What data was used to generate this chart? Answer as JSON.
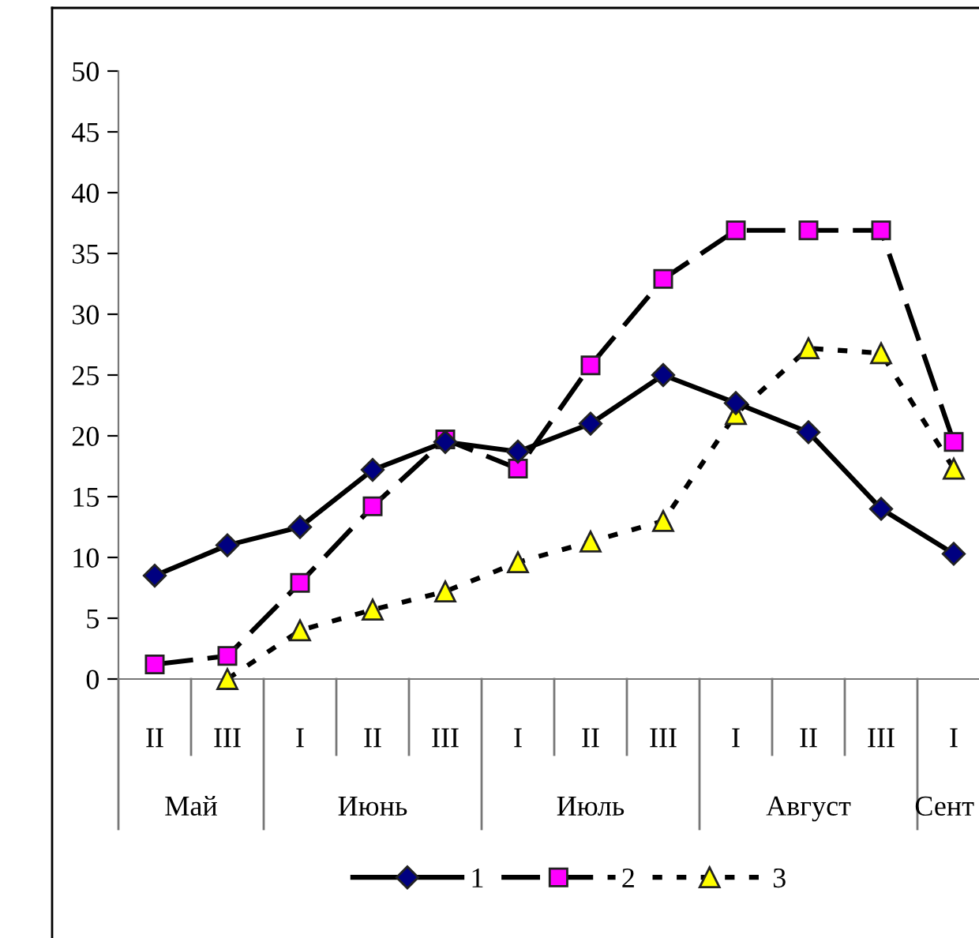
{
  "chart_data": {
    "type": "line",
    "categories": [
      "II",
      "III",
      "I",
      "II",
      "III",
      "I",
      "II",
      "III",
      "I",
      "II",
      "III",
      "I"
    ],
    "series": [
      {
        "name": "1",
        "color": "#000080",
        "marker": "diamond",
        "line_style": "solid",
        "values": [
          8.5,
          11,
          12.5,
          17.2,
          19.5,
          18.7,
          21,
          25,
          22.7,
          20.3,
          14,
          10.3
        ]
      },
      {
        "name": "2",
        "color": "#ff00ff",
        "marker": "square",
        "line_style": "dashed",
        "values": [
          1.2,
          1.9,
          7.9,
          14.2,
          19.7,
          17.3,
          25.8,
          32.9,
          36.9,
          36.9,
          36.9,
          19.5
        ]
      },
      {
        "name": "3",
        "color": "#ffff00",
        "marker": "triangle",
        "line_style": "dotted",
        "values": [
          null,
          0,
          4,
          5.7,
          7.2,
          9.6,
          11.3,
          13,
          21.8,
          27.2,
          26.8,
          17.3
        ]
      }
    ],
    "annotations": [
      "Май",
      "Июнь",
      "Июль",
      "Август",
      "Сент"
    ],
    "ylim": [
      0,
      50
    ],
    "yticks": [
      0,
      5,
      10,
      15,
      20,
      25,
      30,
      35,
      40,
      45,
      50
    ],
    "grid": false,
    "legend": "bottom"
  }
}
